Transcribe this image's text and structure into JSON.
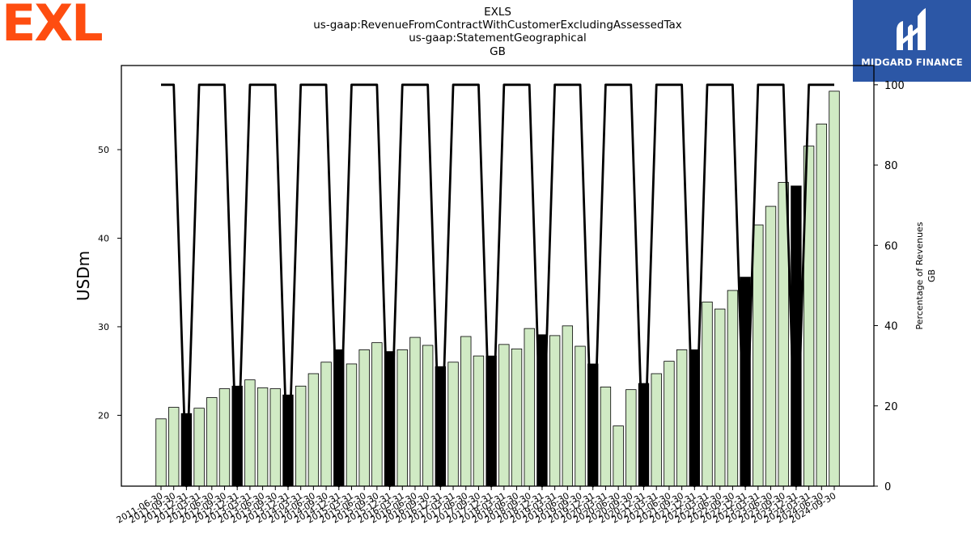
{
  "logos": {
    "left_text": "EXL",
    "left_color": "#fe4d10",
    "right_text": "MIDGARD FINANCE",
    "right_bg": "#2c57a6"
  },
  "titles": {
    "line1": "EXLS",
    "line2": "us-gaap:RevenueFromContractWithCustomerExcludingAssessedTax",
    "line3": "us-gaap:StatementGeographical",
    "line4": "GB"
  },
  "chart_data": {
    "type": "bar",
    "title": "EXLS",
    "ylabel": "USDm",
    "y2label_line1": "Percentage of Revenues",
    "y2label_line2": "GB",
    "ylim": [
      12,
      59.5
    ],
    "y2lim": [
      0,
      104.8
    ],
    "yticks": [
      20,
      30,
      40,
      50
    ],
    "y2ticks": [
      0,
      20,
      40,
      60,
      80,
      100
    ],
    "bar_color": "#d0eac4",
    "highlight_color": "#000000",
    "line_color": "#000000",
    "categories": [
      "2011-06-30",
      "2011-09-30",
      "2011-12-31",
      "2012-03-31",
      "2012-06-30",
      "2012-09-30",
      "2012-12-31",
      "2013-03-31",
      "2013-06-30",
      "2013-09-30",
      "2013-12-31",
      "2014-03-31",
      "2014-06-30",
      "2014-09-30",
      "2014-12-31",
      "2015-03-31",
      "2015-06-30",
      "2015-09-30",
      "2015-12-31",
      "2016-03-31",
      "2016-06-30",
      "2016-09-30",
      "2016-12-31",
      "2017-03-31",
      "2017-06-30",
      "2017-09-30",
      "2017-12-31",
      "2018-03-31",
      "2018-06-30",
      "2018-09-30",
      "2018-12-31",
      "2019-03-31",
      "2019-06-30",
      "2019-09-30",
      "2019-12-31",
      "2020-03-31",
      "2020-06-30",
      "2020-09-30",
      "2020-12-31",
      "2021-03-31",
      "2021-06-30",
      "2021-09-30",
      "2021-12-31",
      "2022-03-31",
      "2022-06-30",
      "2022-09-30",
      "2022-12-31",
      "2023-03-31",
      "2023-06-30",
      "2023-09-30",
      "2023-12-31",
      "2024-03-31",
      "2024-06-30",
      "2024-09-30"
    ],
    "values": [
      19.6,
      20.9,
      20.2,
      20.8,
      22.0,
      23.0,
      23.3,
      24.0,
      23.1,
      23.0,
      22.3,
      23.3,
      24.7,
      26.0,
      27.4,
      25.8,
      27.4,
      28.2,
      27.2,
      27.4,
      28.8,
      27.9,
      25.5,
      26.0,
      28.9,
      26.7,
      26.7,
      28.0,
      27.5,
      29.8,
      29.1,
      29.0,
      30.1,
      27.8,
      25.8,
      23.2,
      18.8,
      22.9,
      23.6,
      24.7,
      26.1,
      27.4,
      27.4,
      32.8,
      32.0,
      34.1,
      35.6,
      41.5,
      43.6,
      46.3,
      45.9,
      50.4,
      52.9,
      56.6
    ],
    "highlighted": [
      2,
      6,
      10,
      14,
      18,
      22,
      26,
      30,
      34,
      38,
      42,
      46,
      50
    ],
    "percentage": [
      100,
      100,
      0,
      100,
      100,
      100,
      0,
      100,
      100,
      100,
      0,
      100,
      100,
      100,
      0,
      100,
      100,
      100,
      0,
      100,
      100,
      100,
      0,
      100,
      100,
      100,
      0,
      100,
      100,
      100,
      0,
      100,
      100,
      100,
      0,
      100,
      100,
      100,
      0,
      100,
      100,
      100,
      0,
      100,
      100,
      100,
      0,
      100,
      100,
      100,
      0,
      100,
      100,
      100
    ]
  }
}
